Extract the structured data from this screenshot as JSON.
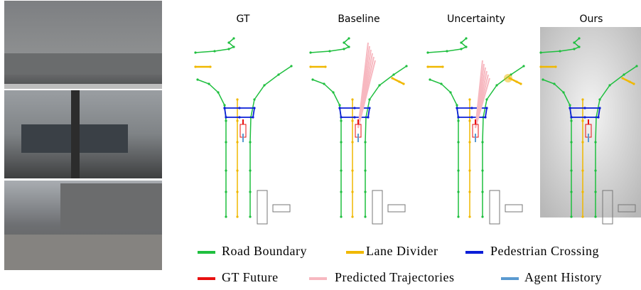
{
  "panels": [
    {
      "title": "GT"
    },
    {
      "title": "Baseline"
    },
    {
      "title": "Uncertainty"
    },
    {
      "title": "Ours"
    }
  ],
  "legend": [
    {
      "label": "Road Boundary",
      "color": "#1fbf3f"
    },
    {
      "label": "Lane Divider",
      "color": "#f0b800"
    },
    {
      "label": "Pedestrian Crossing",
      "color": "#0a1ed8"
    },
    {
      "label": "GT Future",
      "color": "#e81010"
    },
    {
      "label": "Predicted Trajectories",
      "color": "#f7b8c0"
    },
    {
      "label": "Agent History",
      "color": "#5a9ad0"
    }
  ]
}
